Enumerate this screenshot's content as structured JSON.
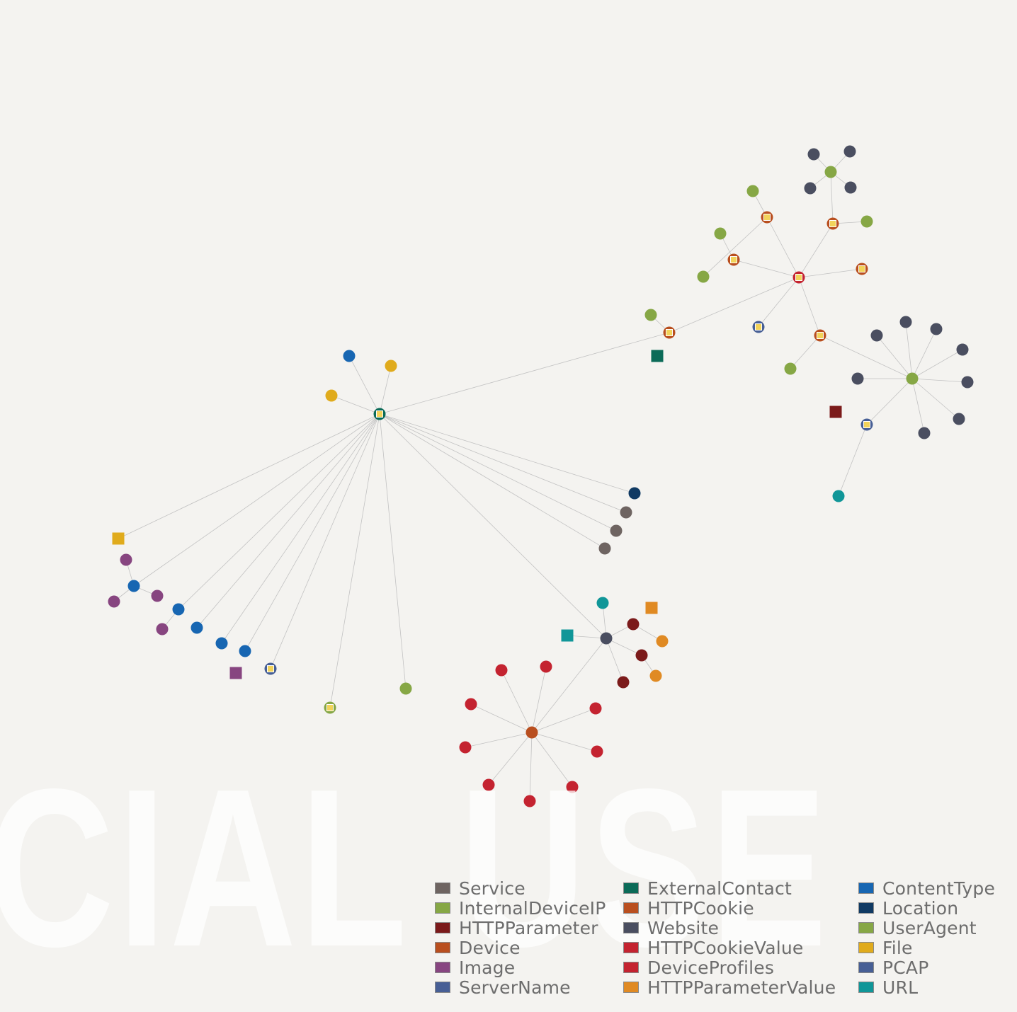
{
  "watermark": "CIAL USE",
  "legend": [
    {
      "label": "Service",
      "color": "#6e6461"
    },
    {
      "label": "InternalDeviceIP",
      "color": "#86a745"
    },
    {
      "label": "HTTPParameter",
      "color": "#7b1a1a"
    },
    {
      "label": "Device",
      "color": "#b94f1f"
    },
    {
      "label": "Image",
      "color": "#874580"
    },
    {
      "label": "ServerName",
      "color": "#475f95"
    },
    {
      "label": "ExternalContact",
      "color": "#0b6b58"
    },
    {
      "label": "HTTPCookie",
      "color": "#b94f1f"
    },
    {
      "label": "Website",
      "color": "#4a4e60"
    },
    {
      "label": "HTTPCookieValue",
      "color": "#c42330"
    },
    {
      "label": "DeviceProfiles",
      "color": "#c42330"
    },
    {
      "label": "HTTPParameterValue",
      "color": "#e08a23"
    },
    {
      "label": "ContentType",
      "color": "#1766b2"
    },
    {
      "label": "Location",
      "color": "#103a63"
    },
    {
      "label": "UserAgent",
      "color": "#86a745"
    },
    {
      "label": "File",
      "color": "#e0ab1c"
    },
    {
      "label": "PCAP",
      "color": "#475f95"
    },
    {
      "label": "URL",
      "color": "#109698"
    }
  ],
  "graph": {
    "nodes": [
      {
        "id": "hub1",
        "type": "ExternalContact",
        "hub": true
      },
      {
        "id": "n_ct1",
        "type": "ContentType"
      },
      {
        "id": "n_file1",
        "type": "File"
      },
      {
        "id": "n_file2",
        "type": "File"
      },
      {
        "id": "n_loc",
        "type": "Location"
      },
      {
        "id": "n_svc1",
        "type": "Service"
      },
      {
        "id": "n_svc2",
        "type": "Service"
      },
      {
        "id": "n_svc3",
        "type": "Service"
      },
      {
        "id": "n_filesq",
        "type": "File",
        "square": true
      },
      {
        "id": "n_ct2",
        "type": "ContentType"
      },
      {
        "id": "n_ct3",
        "type": "ContentType"
      },
      {
        "id": "n_ct4",
        "type": "ContentType"
      },
      {
        "id": "n_ct5",
        "type": "ContentType"
      },
      {
        "id": "n_ct6",
        "type": "ContentType"
      },
      {
        "id": "n_img1",
        "type": "Image"
      },
      {
        "id": "n_img2",
        "type": "Image"
      },
      {
        "id": "n_img3",
        "type": "Image"
      },
      {
        "id": "n_img4",
        "type": "Image"
      },
      {
        "id": "n_imgsq",
        "type": "Image",
        "square": true
      },
      {
        "id": "n_pcap1",
        "type": "PCAP",
        "hub": true
      },
      {
        "id": "n_ip1",
        "type": "InternalDeviceIP",
        "hub": true
      },
      {
        "id": "n_ip2",
        "type": "InternalDeviceIP"
      },
      {
        "id": "ws_hub",
        "type": "Website"
      },
      {
        "id": "n_url1",
        "type": "URL"
      },
      {
        "id": "n_urlsq",
        "type": "URL",
        "square": true
      },
      {
        "id": "n_hpv_sq",
        "type": "HTTPParameterValue",
        "square": true
      },
      {
        "id": "n_hp1",
        "type": "HTTPParameter"
      },
      {
        "id": "n_hp2",
        "type": "HTTPParameter"
      },
      {
        "id": "n_hp3",
        "type": "HTTPParameter"
      },
      {
        "id": "n_hpv1",
        "type": "HTTPParameterValue"
      },
      {
        "id": "n_hpv2",
        "type": "HTTPParameterValue"
      },
      {
        "id": "dev_hub",
        "type": "Device"
      },
      {
        "id": "n_dp1",
        "type": "DeviceProfiles"
      },
      {
        "id": "n_dp2",
        "type": "DeviceProfiles"
      },
      {
        "id": "n_dp3",
        "type": "DeviceProfiles"
      },
      {
        "id": "n_dp4",
        "type": "DeviceProfiles"
      },
      {
        "id": "n_dp5",
        "type": "DeviceProfiles"
      },
      {
        "id": "n_dp6",
        "type": "DeviceProfiles"
      },
      {
        "id": "n_dp7",
        "type": "DeviceProfiles"
      },
      {
        "id": "n_dp8",
        "type": "DeviceProfiles"
      },
      {
        "id": "n_dp9",
        "type": "DeviceProfiles"
      },
      {
        "id": "n_cookie1",
        "type": "HTTPCookie",
        "hub": true
      },
      {
        "id": "n_ua1",
        "type": "UserAgent"
      },
      {
        "id": "n_ecsq",
        "type": "ExternalContact",
        "square": true
      },
      {
        "id": "cv_hub",
        "type": "HTTPCookieValue",
        "hub": true
      },
      {
        "id": "n_cookie2",
        "type": "HTTPCookie",
        "hub": true
      },
      {
        "id": "n_cookie3",
        "type": "HTTPCookie",
        "hub": true
      },
      {
        "id": "n_cookie4",
        "type": "HTTPCookie",
        "hub": true
      },
      {
        "id": "n_cookie5",
        "type": "HTTPCookie",
        "hub": true
      },
      {
        "id": "n_cookie6",
        "type": "HTTPCookie",
        "hub": true
      },
      {
        "id": "n_pcap2",
        "type": "PCAP",
        "hub": true
      },
      {
        "id": "n_ua2",
        "type": "UserAgent"
      },
      {
        "id": "n_ua3",
        "type": "UserAgent"
      },
      {
        "id": "n_ua4",
        "type": "UserAgent"
      },
      {
        "id": "n_ua5",
        "type": "UserAgent"
      },
      {
        "id": "n_ua6",
        "type": "UserAgent"
      },
      {
        "id": "ua_hub1",
        "type": "UserAgent"
      },
      {
        "id": "n_ws1",
        "type": "Website"
      },
      {
        "id": "n_ws2",
        "type": "Website"
      },
      {
        "id": "n_ws3",
        "type": "Website"
      },
      {
        "id": "n_ws4",
        "type": "Website"
      },
      {
        "id": "ua_hub2",
        "type": "UserAgent"
      },
      {
        "id": "n_ws5",
        "type": "Website"
      },
      {
        "id": "n_ws6",
        "type": "Website"
      },
      {
        "id": "n_ws7",
        "type": "Website"
      },
      {
        "id": "n_ws8",
        "type": "Website"
      },
      {
        "id": "n_ws9",
        "type": "Website"
      },
      {
        "id": "n_ws10",
        "type": "Website"
      },
      {
        "id": "n_ws11",
        "type": "Website"
      },
      {
        "id": "n_ws12",
        "type": "Website"
      },
      {
        "id": "n_pcap3",
        "type": "PCAP",
        "hub": true
      },
      {
        "id": "n_hpsq",
        "type": "HTTPParameter",
        "square": true
      },
      {
        "id": "n_url2",
        "type": "URL"
      }
    ],
    "edges": [
      [
        "hub1",
        "n_ct1"
      ],
      [
        "hub1",
        "n_file1"
      ],
      [
        "hub1",
        "n_file2"
      ],
      [
        "hub1",
        "n_cookie1"
      ],
      [
        "hub1",
        "n_loc"
      ],
      [
        "hub1",
        "n_svc1"
      ],
      [
        "hub1",
        "n_svc2"
      ],
      [
        "hub1",
        "n_svc3"
      ],
      [
        "hub1",
        "n_filesq"
      ],
      [
        "hub1",
        "n_ct2"
      ],
      [
        "hub1",
        "n_ct3"
      ],
      [
        "hub1",
        "n_ct4"
      ],
      [
        "hub1",
        "n_ct5"
      ],
      [
        "hub1",
        "n_ct6"
      ],
      [
        "hub1",
        "n_pcap1"
      ],
      [
        "hub1",
        "n_ip1"
      ],
      [
        "hub1",
        "n_ip2"
      ],
      [
        "hub1",
        "ws_hub"
      ],
      [
        "n_img1",
        "n_ct2"
      ],
      [
        "n_ct2",
        "n_img2"
      ],
      [
        "n_ct2",
        "n_img3"
      ],
      [
        "n_ct3",
        "n_img4"
      ],
      [
        "ws_hub",
        "n_url1"
      ],
      [
        "ws_hub",
        "n_urlsq"
      ],
      [
        "ws_hub",
        "n_hp1"
      ],
      [
        "ws_hub",
        "n_hp2"
      ],
      [
        "ws_hub",
        "n_hp3"
      ],
      [
        "ws_hub",
        "dev_hub"
      ],
      [
        "n_hp1",
        "n_hpv1"
      ],
      [
        "n_hp2",
        "n_hpv2"
      ],
      [
        "dev_hub",
        "n_dp1"
      ],
      [
        "dev_hub",
        "n_dp2"
      ],
      [
        "dev_hub",
        "n_dp3"
      ],
      [
        "dev_hub",
        "n_dp4"
      ],
      [
        "dev_hub",
        "n_dp5"
      ],
      [
        "dev_hub",
        "n_dp6"
      ],
      [
        "dev_hub",
        "n_dp7"
      ],
      [
        "dev_hub",
        "n_dp8"
      ],
      [
        "dev_hub",
        "n_dp9"
      ],
      [
        "n_cookie1",
        "cv_hub"
      ],
      [
        "n_cookie1",
        "n_ua1"
      ],
      [
        "cv_hub",
        "n_cookie2"
      ],
      [
        "cv_hub",
        "n_cookie3"
      ],
      [
        "cv_hub",
        "n_cookie4"
      ],
      [
        "cv_hub",
        "n_cookie5"
      ],
      [
        "cv_hub",
        "n_cookie6"
      ],
      [
        "cv_hub",
        "n_pcap2"
      ],
      [
        "n_cookie2",
        "n_ua2"
      ],
      [
        "n_cookie3",
        "ua_hub1"
      ],
      [
        "n_cookie3",
        "n_ua3"
      ],
      [
        "n_cookie4",
        "n_ua4"
      ],
      [
        "n_cookie4",
        "n_ua5"
      ],
      [
        "n_cookie6",
        "n_ua6"
      ],
      [
        "n_cookie6",
        "ua_hub2"
      ],
      [
        "ua_hub1",
        "n_ws1"
      ],
      [
        "ua_hub1",
        "n_ws2"
      ],
      [
        "ua_hub1",
        "n_ws3"
      ],
      [
        "ua_hub1",
        "n_ws4"
      ],
      [
        "ua_hub2",
        "n_ws5"
      ],
      [
        "ua_hub2",
        "n_ws6"
      ],
      [
        "ua_hub2",
        "n_ws7"
      ],
      [
        "ua_hub2",
        "n_ws8"
      ],
      [
        "ua_hub2",
        "n_ws9"
      ],
      [
        "ua_hub2",
        "n_ws10"
      ],
      [
        "ua_hub2",
        "n_ws11"
      ],
      [
        "ua_hub2",
        "n_ws12"
      ],
      [
        "ua_hub2",
        "n_pcap3"
      ],
      [
        "n_pcap3",
        "n_url2"
      ]
    ]
  }
}
